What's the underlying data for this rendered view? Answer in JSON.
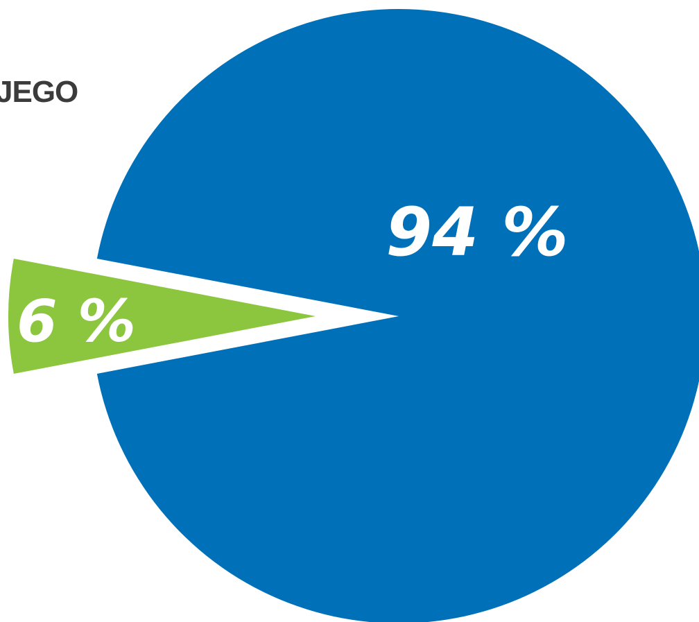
{
  "chart_data": {
    "type": "pie",
    "title": "JEGO",
    "slices": [
      {
        "value": 94,
        "label": "94 %",
        "color": "#0070b9"
      },
      {
        "value": 6,
        "label": "6 %",
        "color": "#8cc63f"
      }
    ],
    "exploded_slice_index": 1,
    "legend": "none"
  }
}
